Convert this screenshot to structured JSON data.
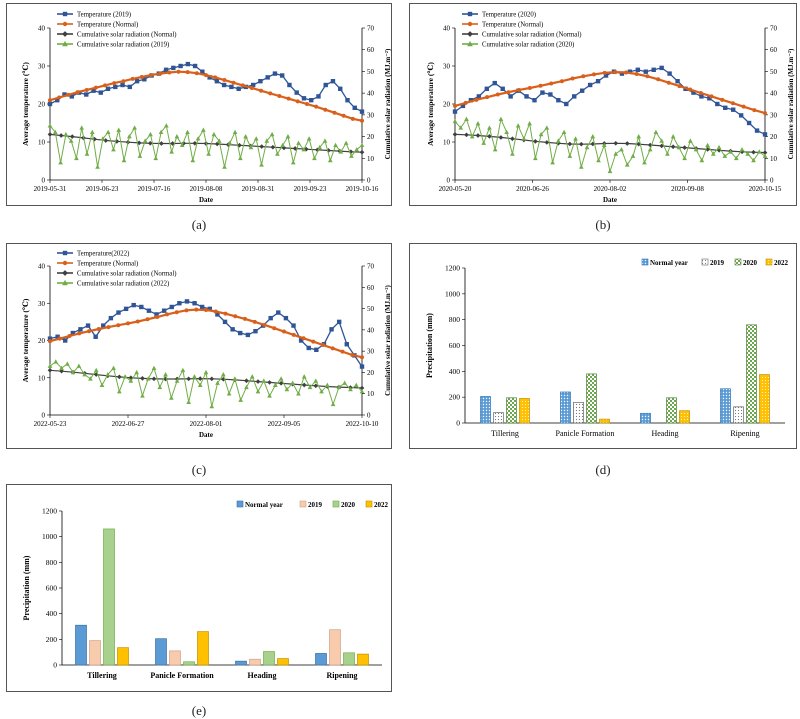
{
  "colors": {
    "temp_obs": "#2f5597",
    "temp_norm": "#d9601a",
    "rad_norm": "#404040",
    "rad_obs": "#70ad47",
    "bar_normal": "#5b9bd5",
    "bar_2019": "#f8cbad",
    "bar_2020": "#a9d18e",
    "bar_2022": "#ffc000"
  },
  "panels": [
    {
      "caption": "(a)",
      "chart_data": {
        "type": "line",
        "xlabel": "Date",
        "ylabel": "Average temperature (℃)",
        "ylabel2": "Cumulative solar radiation (MJ.m⁻²)",
        "ylim": [
          0,
          40
        ],
        "y_ticks": [
          "0",
          "10",
          "20",
          "30",
          "40"
        ],
        "ylim2": [
          0,
          70
        ],
        "y2_ticks": [
          "0",
          "10",
          "20",
          "30",
          "40",
          "50",
          "60",
          "70"
        ],
        "x_ticks": [
          "2019-05-31",
          "2019-06-23",
          "2019-07-16",
          "2019-08-08",
          "2019-08-31",
          "2019-09-23",
          "2019-10-16"
        ],
        "legend": [
          "Temperature (2019)",
          "Temperature (Normal)",
          "Cumulative solar radiation (Normal)",
          "Cumulative solar radiation (2019)"
        ],
        "series": [
          {
            "name": "Temperature (2019)",
            "axis": "left",
            "values": [
              20,
              21,
              22.5,
              22,
              23,
              22.5,
              23.5,
              23,
              24,
              24.5,
              25,
              24.5,
              26,
              26.5,
              27.5,
              28,
              29,
              29.5,
              30,
              30.5,
              30,
              28.5,
              27,
              26,
              25,
              24.5,
              24,
              24.5,
              25,
              26,
              27,
              28,
              27.5,
              25,
              23,
              21.5,
              21,
              22,
              25,
              26,
              24,
              21,
              19,
              18
            ]
          },
          {
            "name": "Temperature (Normal)",
            "axis": "left",
            "values": [
              21,
              21.7,
              22.4,
              23.1,
              23.7,
              24.3,
              24.9,
              25.5,
              26,
              26.6,
              27.1,
              27.6,
              28,
              28.3,
              28.5,
              28.4,
              28.1,
              27.6,
              27,
              26.3,
              25.6,
              24.9,
              24.2,
              23.5,
              22.8,
              22.1,
              21.4,
              20.7,
              20,
              19.3,
              18.5,
              17.7,
              16.9,
              16.1,
              15.6
            ]
          },
          {
            "name": "Cumulative solar radiation (Normal)",
            "axis": "right",
            "values": [
              21,
              20.5,
              20,
              19.4,
              18.8,
              18.2,
              17.8,
              17.4,
              17.1,
              16.9,
              16.8,
              16.8,
              16.9,
              16.9,
              16.8,
              16.6,
              16.3,
              16,
              15.7,
              15.4,
              15.1,
              14.8,
              14.5,
              14.2,
              13.9,
              13.6,
              13.3,
              13,
              12.8
            ]
          },
          {
            "name": "Cumulative solar radiation (2019)",
            "axis": "right",
            "values": [
              25,
              22,
              8,
              21,
              18,
              10,
              24,
              12,
              22,
              6,
              19,
              22,
              14,
              23,
              9,
              20,
              24,
              11,
              18,
              21,
              10,
              22,
              25,
              13,
              20,
              16,
              22,
              9,
              19,
              23,
              12,
              21,
              18,
              6,
              17,
              22,
              10,
              20,
              15,
              19,
              7,
              18,
              21,
              12,
              16,
              20,
              8,
              17,
              14,
              19,
              10,
              15,
              18,
              9,
              16,
              13,
              17,
              11,
              14,
              16
            ]
          }
        ]
      }
    },
    {
      "caption": "(b)",
      "chart_data": {
        "type": "line",
        "xlabel": "Date",
        "ylabel": "Average temperature (℃)",
        "ylabel2": "Cumulative solar radiation (MJ.m⁻²)",
        "ylim": [
          0,
          40
        ],
        "y_ticks": [
          "0",
          "10",
          "20",
          "30",
          "40"
        ],
        "ylim2": [
          0,
          70
        ],
        "y2_ticks": [
          "0",
          "10",
          "20",
          "30",
          "40",
          "50",
          "60",
          "70"
        ],
        "x_ticks": [
          "2020-05-20",
          "2020-06-26",
          "2020-08-02",
          "2020-09-08",
          "2020-10-15"
        ],
        "legend": [
          "Temperature (2020)",
          "Temperature (Normal)",
          "Cumulative solar radiation (Normal)",
          "Cumulative solar radiation (2020)"
        ],
        "series": [
          {
            "name": "Temperature (2020)",
            "axis": "left",
            "values": [
              18,
              19.5,
              21,
              22,
              24,
              25.5,
              24,
              22,
              23.5,
              22,
              21,
              23,
              22.5,
              21,
              20,
              22,
              23.5,
              25,
              26,
              27.5,
              28.5,
              28,
              28.5,
              29,
              28.5,
              29,
              29.5,
              28,
              26,
              24,
              23,
              22,
              21.5,
              20,
              19,
              18.5,
              17,
              15,
              13,
              12
            ]
          },
          {
            "name": "Temperature (Normal)",
            "axis": "left",
            "values": [
              19.5,
              20.3,
              21.1,
              21.8,
              22.5,
              23.1,
              23.7,
              24.2,
              24.8,
              25.4,
              26,
              26.7,
              27.3,
              27.8,
              28.2,
              28.4,
              28.3,
              27.9,
              27.3,
              26.5,
              25.6,
              24.7,
              23.8,
              22.9,
              22,
              21.1,
              20.2,
              19.3,
              18.4,
              17.6
            ]
          },
          {
            "name": "Cumulative solar radiation (Normal)",
            "axis": "right",
            "values": [
              21,
              20.8,
              20.5,
              20.1,
              19.6,
              19,
              18.4,
              17.8,
              17.3,
              16.9,
              16.6,
              16.5,
              16.6,
              16.8,
              16.9,
              16.8,
              16.5,
              16.1,
              15.7,
              15.3,
              14.9,
              14.5,
              14.1,
              13.7,
              13.3,
              13,
              12.8,
              12.6
            ]
          },
          {
            "name": "Cumulative solar radiation (2020)",
            "axis": "right",
            "values": [
              27,
              24,
              28,
              20,
              26,
              17,
              24,
              14,
              28,
              22,
              12,
              25,
              19,
              26,
              10,
              21,
              24,
              8,
              18,
              22,
              11,
              19,
              6,
              15,
              20,
              9,
              16,
              4,
              12,
              14,
              7,
              11,
              20,
              8,
              14,
              22,
              18,
              12,
              20,
              15,
              10,
              18,
              14,
              9,
              16,
              12,
              15,
              11,
              13,
              10,
              14,
              12,
              9,
              13,
              11
            ]
          }
        ]
      }
    },
    {
      "caption": "(c)",
      "chart_data": {
        "type": "line",
        "xlabel": "Date",
        "ylabel": "Average temperature (℃)",
        "ylabel2": "Cumulative solar radiation (MJ.m⁻²)",
        "ylim": [
          0,
          40
        ],
        "y_ticks": [
          "0",
          "10",
          "20",
          "30",
          "40"
        ],
        "ylim2": [
          0,
          70
        ],
        "y2_ticks": [
          "0",
          "10",
          "20",
          "30",
          "40",
          "50",
          "60",
          "70"
        ],
        "x_ticks": [
          "2022-05-23",
          "2022-06-27",
          "2022-08-01",
          "2022-09-05",
          "2022-10-10"
        ],
        "legend": [
          "Temperature(2022)",
          "Temperature (Normal)",
          "Cumulative solar radiation (Normal)",
          "Cumulative solar radiation (2022)"
        ],
        "series": [
          {
            "name": "Temperature(2022)",
            "axis": "left",
            "values": [
              20.5,
              21,
              20,
              22,
              23,
              24,
              21,
              24,
              26,
              27.5,
              28.5,
              29.5,
              29,
              28,
              27,
              28,
              29,
              30,
              30.5,
              30,
              29,
              28.5,
              27,
              25,
              23,
              22,
              21.5,
              22.5,
              24,
              26,
              27.5,
              26,
              24,
              20,
              18,
              17.5,
              19,
              23,
              25,
              19,
              16,
              13
            ]
          },
          {
            "name": "Temperature (Normal)",
            "axis": "left",
            "values": [
              19.8,
              20.5,
              21.2,
              21.9,
              22.5,
              23.1,
              23.6,
              24.1,
              24.6,
              25.1,
              25.7,
              26.3,
              27,
              27.6,
              28.1,
              28.3,
              28.2,
              27.8,
              27.2,
              26.5,
              25.8,
              25,
              24.2,
              23.3,
              22.4,
              21.5,
              20.6,
              19.7,
              18.8,
              17.9,
              17,
              16.1,
              15.5
            ]
          },
          {
            "name": "Cumulative solar radiation (Normal)",
            "axis": "right",
            "values": [
              21,
              20.6,
              20.1,
              19.6,
              19,
              18.4,
              17.9,
              17.5,
              17.2,
              17,
              16.9,
              16.9,
              17,
              17.1,
              17,
              16.8,
              16.5,
              16.1,
              15.7,
              15.3,
              14.9,
              14.5,
              14.1,
              13.7,
              13.4,
              13.1,
              12.9,
              12.7
            ]
          },
          {
            "name": "Cumulative solar radiation (2022)",
            "axis": "right",
            "values": [
              23,
              25,
              22,
              24,
              20,
              23,
              19,
              17,
              21,
              14,
              19,
              22,
              11,
              18,
              16,
              20,
              9,
              17,
              22,
              13,
              19,
              8,
              16,
              21,
              6,
              18,
              14,
              20,
              4,
              15,
              19,
              10,
              17,
              7,
              13,
              18,
              11,
              16,
              9,
              14,
              17,
              12,
              15,
              10,
              18,
              13,
              16,
              11,
              14,
              5,
              13,
              15,
              12,
              14,
              11
            ]
          }
        ]
      }
    },
    {
      "caption": "(d)",
      "chart_data": {
        "type": "bar",
        "ylabel": "Precipitation (mm)",
        "ylim": [
          0,
          1200
        ],
        "y_ticks": [
          "0",
          "200",
          "400",
          "600",
          "800",
          "1000",
          "1200"
        ],
        "categories": [
          "Tillering",
          "Panicle Formation",
          "Heading",
          "Ripening"
        ],
        "legend": [
          "Normal year",
          "2019",
          "2020",
          "2022"
        ],
        "series": [
          {
            "name": "Normal year",
            "values": [
              205,
              240,
              75,
              265
            ]
          },
          {
            "name": "2019",
            "values": [
              80,
              160,
              0,
              125
            ]
          },
          {
            "name": "2020",
            "values": [
              195,
              380,
              195,
              760
            ]
          },
          {
            "name": "2022",
            "values": [
              190,
              30,
              95,
              375
            ]
          }
        ]
      }
    },
    {
      "caption": "(e)",
      "chart_data": {
        "type": "bar",
        "ylabel": "Precipitation (mm)",
        "ylim": [
          0,
          1200
        ],
        "y_ticks": [
          "0",
          "200",
          "400",
          "600",
          "800",
          "1000",
          "1200"
        ],
        "categories": [
          "Tillering",
          "Panicle Formation",
          "Heading",
          "Ripening"
        ],
        "legend": [
          "Normal year",
          "2019",
          "2020",
          "2022"
        ],
        "series": [
          {
            "name": "Normal year",
            "values": [
              310,
              205,
              30,
              90
            ]
          },
          {
            "name": "2019",
            "values": [
              190,
              110,
              45,
              275
            ]
          },
          {
            "name": "2020",
            "values": [
              1060,
              25,
              105,
              95
            ]
          },
          {
            "name": "2022",
            "values": [
              135,
              260,
              50,
              85
            ]
          }
        ]
      }
    }
  ]
}
